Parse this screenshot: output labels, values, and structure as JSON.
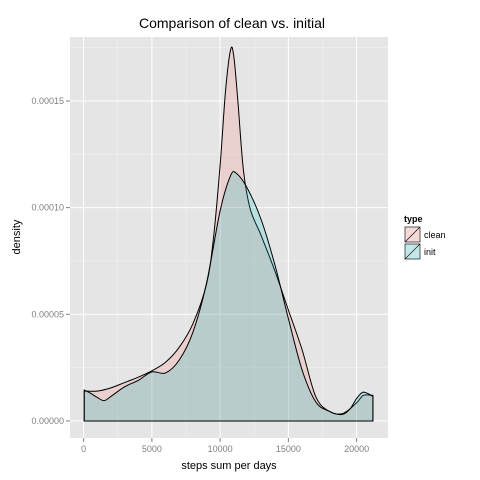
{
  "chart_data": {
    "type": "area",
    "title": "Comparison of clean vs. initial",
    "xlabel": "steps sum per days",
    "ylabel": "density",
    "xlim": [
      -1000,
      22300
    ],
    "ylim": [
      -8e-06,
      0.00018
    ],
    "x_ticks": [
      {
        "value": 0,
        "label": "0"
      },
      {
        "value": 5000,
        "label": "5000"
      },
      {
        "value": 10000,
        "label": "10000"
      },
      {
        "value": 15000,
        "label": "15000"
      },
      {
        "value": 20000,
        "label": "20000"
      }
    ],
    "y_ticks": [
      {
        "value": 0,
        "label": "0.00000"
      },
      {
        "value": 5e-05,
        "label": "0.00005"
      },
      {
        "value": 0.0001,
        "label": "0.00010"
      },
      {
        "value": 0.00015,
        "label": "0.00015"
      }
    ],
    "grid": true,
    "background": "#e5e5e5",
    "legend": {
      "title": "type",
      "placement": "right",
      "entries": [
        "clean",
        "init"
      ]
    },
    "series": [
      {
        "name": "clean",
        "color": "#f8766d",
        "points": [
          [
            41,
            1.4e-05
          ],
          [
            1000,
            1.4e-05
          ],
          [
            2000,
            1.55e-05
          ],
          [
            3000,
            1.8e-05
          ],
          [
            4000,
            2.05e-05
          ],
          [
            5000,
            2.35e-05
          ],
          [
            6000,
            2.75e-05
          ],
          [
            7000,
            3.45e-05
          ],
          [
            8000,
            4.55e-05
          ],
          [
            9000,
            6.4e-05
          ],
          [
            9500,
            8.5e-05
          ],
          [
            10000,
            0.00012
          ],
          [
            10400,
            0.000155
          ],
          [
            10766,
            0.000174
          ],
          [
            11000,
            0.000171
          ],
          [
            11300,
            0.00015
          ],
          [
            11700,
            0.000118
          ],
          [
            12200,
            9.95e-05
          ],
          [
            13000,
            8.7e-05
          ],
          [
            14000,
            7.05e-05
          ],
          [
            15000,
            5.2e-05
          ],
          [
            16000,
            3.35e-05
          ],
          [
            17000,
            1.15e-05
          ],
          [
            18000,
            4.5e-06
          ],
          [
            19000,
            3.5e-06
          ],
          [
            20000,
            8.5e-06
          ],
          [
            20500,
            1.2e-05
          ],
          [
            21194,
            1.2e-05
          ]
        ]
      },
      {
        "name": "init",
        "color": "#00bfc4",
        "points": [
          [
            41,
            1.45e-05
          ],
          [
            500,
            1.3e-05
          ],
          [
            1000,
            1.1e-05
          ],
          [
            1500,
            9.5e-06
          ],
          [
            2000,
            1.15e-05
          ],
          [
            3000,
            1.6e-05
          ],
          [
            4000,
            1.9e-05
          ],
          [
            5000,
            2.3e-05
          ],
          [
            6000,
            2.25e-05
          ],
          [
            7000,
            2.85e-05
          ],
          [
            8000,
            4.15e-05
          ],
          [
            9000,
            6.45e-05
          ],
          [
            10000,
            9.85e-05
          ],
          [
            10766,
            0.000115
          ],
          [
            11200,
            0.000116
          ],
          [
            12000,
            0.000109
          ],
          [
            13000,
            9.45e-05
          ],
          [
            14000,
            7.35e-05
          ],
          [
            15000,
            4.8e-05
          ],
          [
            16000,
            2.4e-05
          ],
          [
            17000,
            9e-06
          ],
          [
            18000,
            4.5e-06
          ],
          [
            18900,
            3e-06
          ],
          [
            19500,
            5.5e-06
          ],
          [
            20000,
            1.05e-05
          ],
          [
            20500,
            1.35e-05
          ],
          [
            21194,
            1.15e-05
          ]
        ]
      }
    ]
  }
}
